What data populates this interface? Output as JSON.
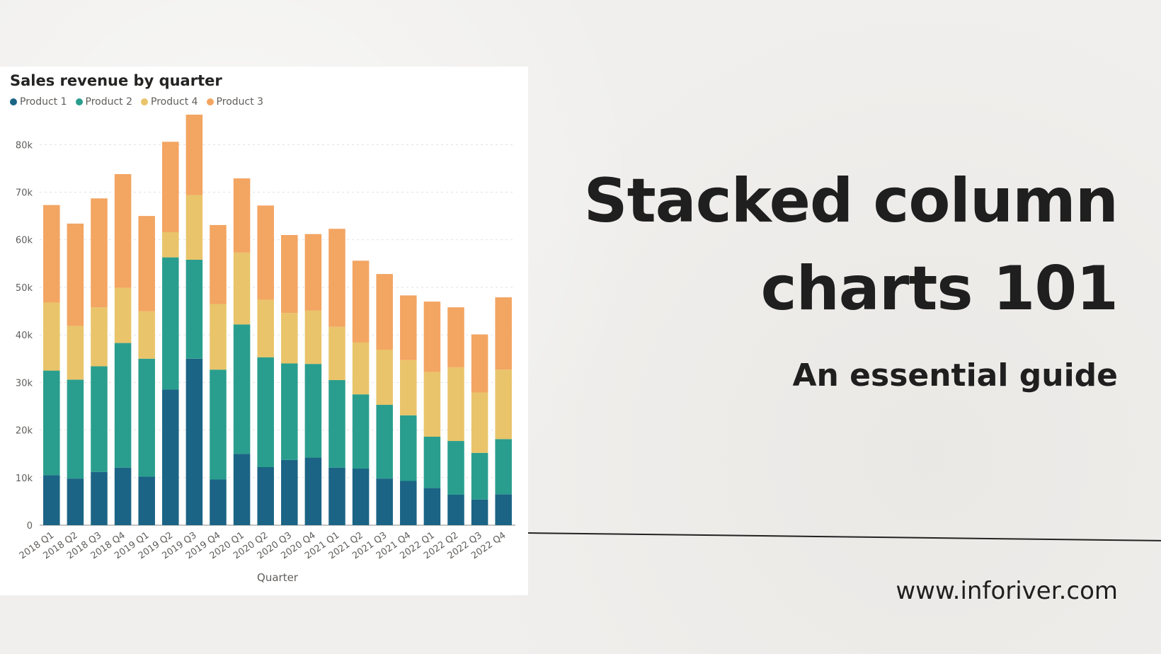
{
  "headline": {
    "line1": "Stacked column",
    "line2": "charts 101",
    "subtitle": "An essential guide",
    "website": "www.inforiver.com"
  },
  "colors": {
    "product1": "#1b6485",
    "product2": "#2a9e8e",
    "product4": "#e9c46a",
    "product3": "#f3a562"
  },
  "chart_data": {
    "type": "bar",
    "stacked": true,
    "title": "Sales revenue by quarter",
    "xlabel": "Quarter",
    "ylabel": "",
    "ylim": [
      0,
      86000
    ],
    "yticks": [
      0,
      10000,
      20000,
      30000,
      40000,
      50000,
      60000,
      70000,
      80000
    ],
    "ytick_labels": [
      "0",
      "10k",
      "20k",
      "30k",
      "40k",
      "50k",
      "60k",
      "70k",
      "80k"
    ],
    "grid": true,
    "legend_position": "top-left",
    "categories": [
      "2018 Q1",
      "2018 Q2",
      "2018 Q3",
      "2018 Q4",
      "2019 Q1",
      "2019 Q2",
      "2019 Q3",
      "2019 Q4",
      "2020 Q1",
      "2020 Q2",
      "2020 Q3",
      "2020 Q4",
      "2021 Q1",
      "2021 Q2",
      "2021 Q3",
      "2021 Q4",
      "2022 Q1",
      "2022 Q2",
      "2022 Q3",
      "2022 Q4"
    ],
    "series": [
      {
        "name": "Product 1",
        "color": "#1b6485",
        "values": [
          10500,
          9800,
          11200,
          12100,
          10200,
          28500,
          35000,
          9600,
          15000,
          12200,
          13700,
          14200,
          12100,
          11900,
          9800,
          9300,
          7800,
          6400,
          5400,
          6500
        ]
      },
      {
        "name": "Product 2",
        "color": "#2a9e8e",
        "values": [
          22000,
          20800,
          22200,
          26200,
          24800,
          27800,
          20800,
          23100,
          27200,
          23100,
          20300,
          19700,
          18400,
          15600,
          15500,
          13800,
          10800,
          11300,
          9800,
          11600
        ]
      },
      {
        "name": "Product 4",
        "color": "#e9c46a",
        "values": [
          14300,
          11300,
          12400,
          11600,
          10000,
          5300,
          13600,
          13800,
          15100,
          12100,
          10600,
          11200,
          11200,
          10900,
          11600,
          11600,
          13600,
          15500,
          12700,
          14600
        ]
      },
      {
        "name": "Product 3",
        "color": "#f3a562",
        "values": [
          20500,
          21500,
          22900,
          23900,
          20000,
          19000,
          16900,
          16600,
          15600,
          19800,
          16400,
          16100,
          20600,
          17200,
          15900,
          13600,
          14800,
          12600,
          12200,
          15200
        ]
      }
    ]
  }
}
